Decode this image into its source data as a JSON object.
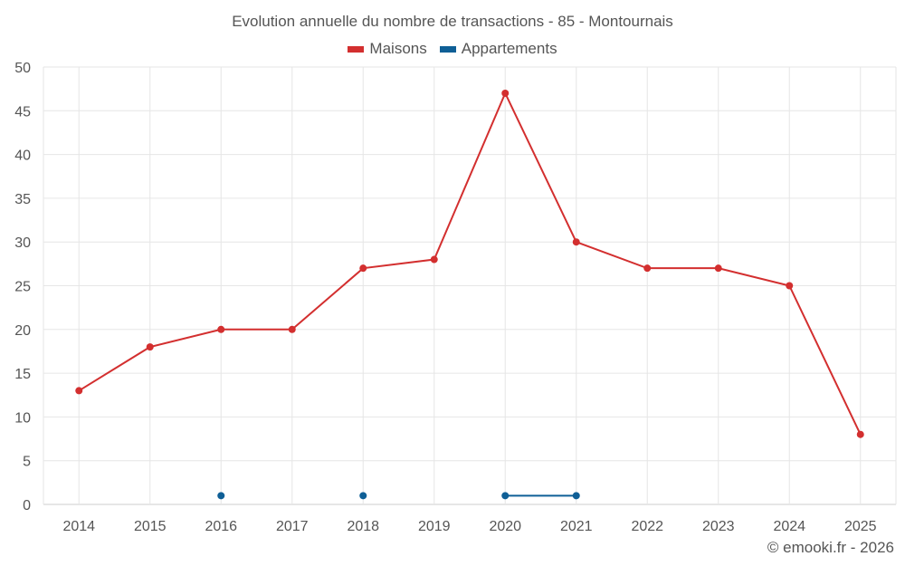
{
  "colors": {
    "maisons": "#d32f2f",
    "appartements": "#0f5f96",
    "grid": "#e6e6e6",
    "axis": "#cccccc"
  },
  "chart_data": {
    "type": "line",
    "title": "Evolution annuelle du nombre de transactions - 85 - Montournais",
    "categories": [
      "2014",
      "2015",
      "2016",
      "2017",
      "2018",
      "2019",
      "2020",
      "2021",
      "2022",
      "2023",
      "2024",
      "2025"
    ],
    "ylim": [
      0,
      50
    ],
    "yticks": [
      0,
      5,
      10,
      15,
      20,
      25,
      30,
      35,
      40,
      45,
      50
    ],
    "series": [
      {
        "name": "Maisons",
        "color_key": "maisons",
        "values": [
          13,
          18,
          20,
          20,
          27,
          28,
          47,
          30,
          27,
          27,
          25,
          8
        ]
      },
      {
        "name": "Appartements",
        "color_key": "appartements",
        "values": [
          null,
          null,
          1,
          null,
          1,
          null,
          1,
          1,
          null,
          null,
          null,
          null
        ]
      }
    ],
    "legend_position": "top-center"
  },
  "footer": "© emooki.fr - 2026"
}
